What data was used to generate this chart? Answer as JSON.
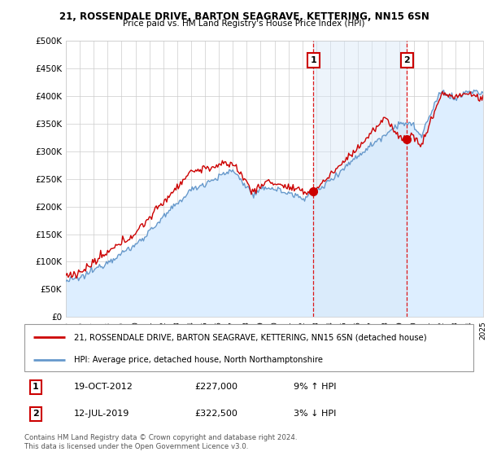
{
  "title_line1": "21, ROSSENDALE DRIVE, BARTON SEAGRAVE, KETTERING, NN15 6SN",
  "title_line2": "Price paid vs. HM Land Registry's House Price Index (HPI)",
  "ylim": [
    0,
    500000
  ],
  "yticks": [
    0,
    50000,
    100000,
    150000,
    200000,
    250000,
    300000,
    350000,
    400000,
    450000,
    500000
  ],
  "ytick_labels": [
    "£0",
    "£50K",
    "£100K",
    "£150K",
    "£200K",
    "£250K",
    "£300K",
    "£350K",
    "£400K",
    "£450K",
    "£500K"
  ],
  "sale1_date_num": 2012.8,
  "sale1_price": 227000,
  "sale1_label": "1",
  "sale1_date_str": "19-OCT-2012",
  "sale1_price_str": "£227,000",
  "sale1_hpi_str": "9% ↑ HPI",
  "sale2_date_num": 2019.53,
  "sale2_price": 322500,
  "sale2_label": "2",
  "sale2_date_str": "12-JUL-2019",
  "sale2_price_str": "£322,500",
  "sale2_hpi_str": "3% ↓ HPI",
  "line1_color": "#cc0000",
  "line2_color": "#6699cc",
  "line2_fill_color": "#ddeeff",
  "vline_color": "#dd0000",
  "span_color": "#d8e8f8",
  "grid_color": "#cccccc",
  "background_color": "#ffffff",
  "legend_line1": "21, ROSSENDALE DRIVE, BARTON SEAGRAVE, KETTERING, NN15 6SN (detached house)",
  "legend_line2": "HPI: Average price, detached house, North Northamptonshire",
  "footer": "Contains HM Land Registry data © Crown copyright and database right 2024.\nThis data is licensed under the Open Government Licence v3.0.",
  "xmin": 1995,
  "xmax": 2025
}
